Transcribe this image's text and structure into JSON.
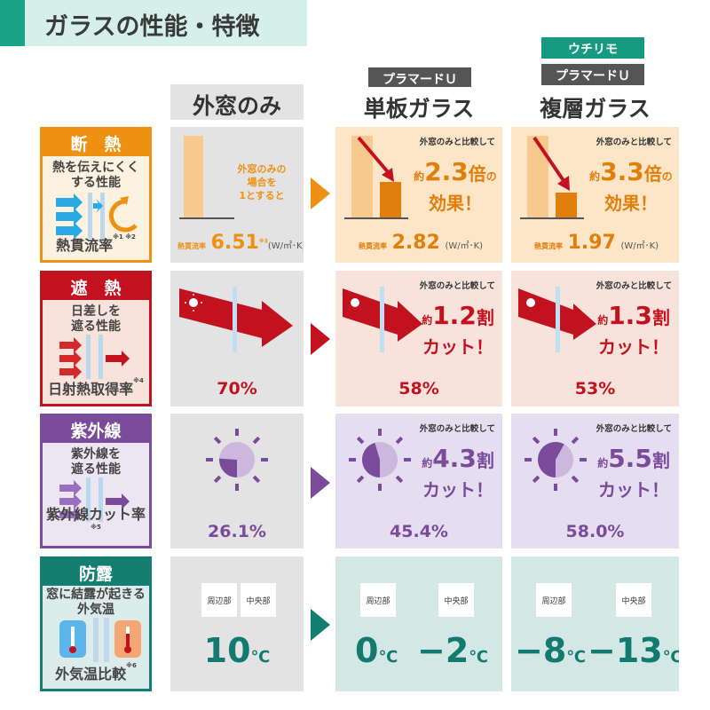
{
  "title": "ガラスの性能・特徴",
  "columns": [
    {
      "title": "外窓のみ"
    },
    {
      "badges": [
        "プラマードＵ"
      ],
      "title": "単板ガラス"
    },
    {
      "badges": [
        "ウチリモ",
        "プラマードＵ"
      ],
      "title": "複層ガラス"
    }
  ],
  "colors": {
    "orange": "#ee9112",
    "red": "#c3121f",
    "purple": "#7b4b9b",
    "teal": "#147e70",
    "teal_badge": "#179b80"
  },
  "rows": {
    "insulation": {
      "title": "断　熱",
      "desc1": "熱を伝えにくく",
      "desc2": "する性能",
      "metric": "熱貫流率",
      "note": "※1 ※2",
      "base_note1": "外窓のみの",
      "base_note2": "場合を",
      "base_note3": "1とすると",
      "value_label": "熱貫流率",
      "unit": "(W/㎡･K)",
      "note3": "※3",
      "compare": "外窓のみと比較して",
      "approx": "約",
      "suffix": "倍",
      "effect": "効果！",
      "no": "の",
      "values": [
        "6.51",
        "2.82",
        "1.97"
      ],
      "ratios": [
        "2.3",
        "3.3"
      ]
    },
    "shading": {
      "title": "遮　熱",
      "desc1": "日差しを",
      "desc2": "遮る性能",
      "metric": "日射熱取得率",
      "note": "※4",
      "compare": "外窓のみと比較して",
      "approx": "約",
      "suffix": "割",
      "cut": "カット！",
      "values": [
        "70%",
        "58%",
        "53%"
      ],
      "ratios": [
        "1.2",
        "1.3"
      ]
    },
    "uv": {
      "title": "紫外線",
      "desc1": "紫外線を",
      "desc2": "遮る性能",
      "metric": "紫外線カット率",
      "note": "※5",
      "compare": "外窓のみと比較して",
      "approx": "約",
      "suffix": "割",
      "cut": "カット！",
      "values": [
        "26.1%",
        "45.4%",
        "58.0%"
      ],
      "fractions": [
        0.261,
        0.454,
        0.58
      ],
      "ratios": [
        "4.3",
        "5.5"
      ]
    },
    "condensation": {
      "title": "防露",
      "desc1": "窓に結露が起きる",
      "desc2": "外気温",
      "metric": "外気温比較",
      "note": "※6",
      "edge": "周辺部",
      "center": "中央部",
      "unit": "℃",
      "values": [
        [
          "10"
        ],
        [
          "0",
          "−2"
        ],
        [
          "−8",
          "−13"
        ]
      ]
    }
  }
}
